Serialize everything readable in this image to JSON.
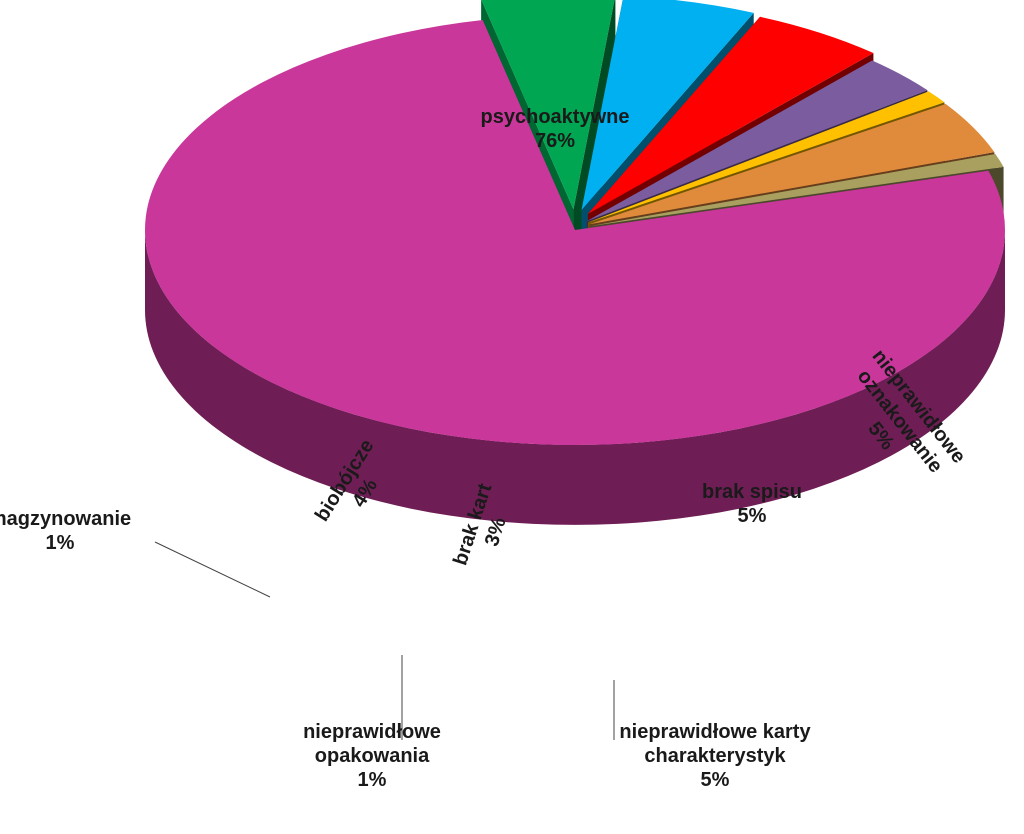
{
  "chart_data": {
    "type": "pie",
    "title": "",
    "style": "3d-exploded",
    "slices": [
      {
        "label": "psychoaktywne",
        "value": 76,
        "display": "76%",
        "color": "#C9379A",
        "label_position": "inside"
      },
      {
        "label": "nieprawidłowe oznakowanie",
        "value": 5,
        "display": "5%",
        "color": "#00A651",
        "label_position": "inside"
      },
      {
        "label": "brak spisu",
        "value": 5,
        "display": "5%",
        "color": "#00B0F0",
        "label_position": "inside"
      },
      {
        "label": "nieprawidłowe karty charakterystyk",
        "value": 5,
        "display": "5%",
        "color": "#FF0000",
        "label_position": "outside"
      },
      {
        "label": "brak kart",
        "value": 3,
        "display": "3%",
        "color": "#7B5C9E",
        "label_position": "inside"
      },
      {
        "label": "nieprawidłowe opakowania",
        "value": 1,
        "display": "1%",
        "color": "#FFC000",
        "label_position": "outside"
      },
      {
        "label": "biobójcze",
        "value": 4,
        "display": "4%",
        "color": "#E08A3C",
        "label_position": "inside"
      },
      {
        "label": "magzynowanie",
        "value": 1,
        "display": "1%",
        "color": "#A9A060",
        "label_position": "outside"
      }
    ]
  }
}
